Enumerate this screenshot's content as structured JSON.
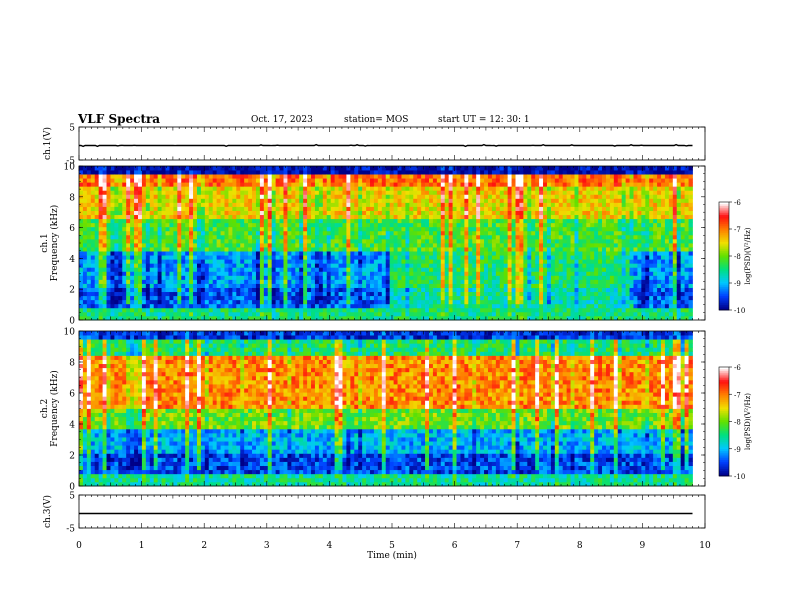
{
  "header": {
    "title": "VLF Spectra",
    "date": "Oct. 17, 2023",
    "station": "station= MOS",
    "start_time": "start UT =   12: 30: 1"
  },
  "chart_data": [
    {
      "type": "line",
      "panel": "ch1-waveform",
      "ylabel": "ch.1(V)",
      "ylim": [
        -5,
        5
      ],
      "yticks": [
        "5",
        "-5"
      ],
      "series": [
        {
          "x": [
            0,
            9.8
          ],
          "y": [
            0,
            0
          ]
        }
      ]
    },
    {
      "type": "heatmap",
      "panel": "ch1-spectrogram",
      "ylabel": "ch.1\nFrequency (kHz)",
      "ylabel_lines": [
        "ch.1",
        "Frequency (kHz)"
      ],
      "ylim": [
        0,
        10
      ],
      "yticks": [
        "0",
        "2",
        "4",
        "6",
        "8",
        "10"
      ],
      "xlim": [
        0,
        9.8
      ],
      "colorbar": {
        "label": "log(PSD)(V²/Hz)",
        "range": [
          -10,
          -6
        ],
        "ticks": [
          "-6",
          "-7",
          "-8",
          "-9",
          "-10"
        ]
      }
    },
    {
      "type": "heatmap",
      "panel": "ch2-spectrogram",
      "ylabel": "ch.2\nFrequency (kHz)",
      "ylabel_lines": [
        "ch.2",
        "Frequency (kHz)"
      ],
      "ylim": [
        0,
        10
      ],
      "yticks": [
        "0",
        "2",
        "4",
        "6",
        "8",
        "10"
      ],
      "xlim": [
        0,
        9.8
      ],
      "colorbar": {
        "label": "log(PSD)(V²/Hz)",
        "range": [
          -10,
          -6
        ],
        "ticks": [
          "-6",
          "-7",
          "-8",
          "-9",
          "-10"
        ]
      }
    },
    {
      "type": "line",
      "panel": "ch3-waveform",
      "ylabel": "ch.3(V)",
      "ylim": [
        -5,
        5
      ],
      "yticks": [
        "5",
        "-5"
      ],
      "series": [
        {
          "x": [
            0,
            9.8
          ],
          "y": [
            0,
            0
          ]
        }
      ]
    }
  ],
  "x_axis": {
    "label": "Time (min)",
    "range": [
      0,
      10
    ],
    "ticks": [
      "0",
      "1",
      "2",
      "3",
      "4",
      "5",
      "6",
      "7",
      "8",
      "9",
      "10"
    ]
  },
  "colormap": [
    "#000088",
    "#0040ff",
    "#00c8ff",
    "#00e080",
    "#60e000",
    "#f0e000",
    "#ff8000",
    "#ff1010",
    "#ffffff"
  ]
}
